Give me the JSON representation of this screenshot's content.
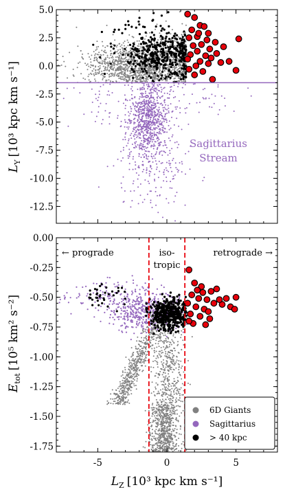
{
  "chart_data": [
    {
      "type": "scatter",
      "panel": "top",
      "xlim": [
        -8,
        8
      ],
      "ylim": [
        -14,
        5
      ],
      "xticks": [
        -5,
        0,
        5
      ],
      "yticks": [
        5.0,
        2.5,
        0.0,
        -2.5,
        -5.0,
        -7.5,
        -10.0,
        -12.5
      ],
      "ytick_labels": [
        "5.0",
        "2.5",
        "0.0",
        "-2.5",
        "-5.0",
        "-7.5",
        "-10.0",
        "-12.5"
      ],
      "ylabel_main": "L",
      "ylabel_sub": "Y",
      "ylabel_units": "[10³ kpc km s⁻¹]",
      "hline_y": -1.5,
      "hline_color": "#9467bd",
      "annotation_line1": "Sagittarius",
      "annotation_line2": "Stream",
      "series": [
        {
          "name": "6D Giants",
          "color": "#808080",
          "clusters": [
            {
              "cx": -2.5,
              "cy": -0.1,
              "sx": 1.6,
              "sy": 0.9,
              "n": 900
            },
            {
              "cx": 0.2,
              "cy": 0.3,
              "sx": 1.5,
              "sy": 1.1,
              "n": 500
            },
            {
              "cx": 0,
              "cy": 0.5,
              "sx": 3.5,
              "sy": 1.3,
              "n": 250
            }
          ]
        },
        {
          "name": "Sagittarius",
          "color": "#9467bd",
          "clusters": [
            {
              "cx": -1.3,
              "cy": -4.8,
              "sx": 0.7,
              "sy": 1.6,
              "n": 750
            },
            {
              "cx": -1.0,
              "cy": -8.5,
              "sx": 1.4,
              "sy": 2.2,
              "n": 220
            },
            {
              "cx": -1.0,
              "cy": -3.0,
              "sx": 3.0,
              "sy": 1.0,
              "n": 150
            }
          ]
        },
        {
          "name": "> 40 kpc",
          "color": "#000000",
          "clusters": [
            {
              "cx": -0.2,
              "cy": 0.8,
              "sx": 1.3,
              "sy": 1.0,
              "n": 380
            },
            {
              "cx": -1.5,
              "cy": 2.2,
              "sx": 1.6,
              "sy": 1.3,
              "n": 80
            }
          ]
        }
      ],
      "red_points": [
        [
          1.5,
          4.6
        ],
        [
          2.0,
          4.3
        ],
        [
          2.4,
          3.6
        ],
        [
          1.8,
          3.2
        ],
        [
          2.7,
          3.5
        ],
        [
          3.0,
          2.9
        ],
        [
          2.2,
          2.6
        ],
        [
          1.6,
          2.5
        ],
        [
          2.9,
          2.3
        ],
        [
          3.5,
          2.1
        ],
        [
          2.5,
          1.9
        ],
        [
          1.9,
          1.8
        ],
        [
          3.1,
          1.5
        ],
        [
          2.2,
          1.3
        ],
        [
          3.6,
          1.1
        ],
        [
          2.8,
          0.9
        ],
        [
          1.7,
          1.0
        ],
        [
          2.4,
          0.4
        ],
        [
          3.0,
          0.2
        ],
        [
          4.5,
          0.4
        ],
        [
          5.2,
          2.4
        ],
        [
          2.1,
          0.0
        ],
        [
          1.6,
          -0.3
        ],
        [
          2.6,
          -0.5
        ],
        [
          3.2,
          0.7
        ],
        [
          5.0,
          -0.4
        ],
        [
          3.9,
          0.3
        ],
        [
          2.0,
          -0.8
        ],
        [
          3.3,
          -1.2
        ],
        [
          4.1,
          1.7
        ],
        [
          1.5,
          0.6
        ],
        [
          2.3,
          2.9
        ]
      ]
    },
    {
      "type": "scatter",
      "panel": "bottom",
      "xlim": [
        -8,
        8
      ],
      "ylim": [
        -1.8,
        0.0
      ],
      "xticks": [
        -5,
        0,
        5
      ],
      "xtick_labels": [
        "-5",
        "0",
        "5"
      ],
      "yticks": [
        0.0,
        -0.25,
        -0.5,
        -0.75,
        -1.0,
        -1.25,
        -1.5,
        -1.75
      ],
      "ytick_labels": [
        "0.00",
        "-0.25",
        "-0.50",
        "-0.75",
        "-1.00",
        "-1.25",
        "-1.50",
        "-1.75"
      ],
      "ylabel_main": "E",
      "ylabel_sub": "tot",
      "ylabel_units": "[10⁵ km² s⁻²]",
      "xlabel_main": "L",
      "xlabel_sub": "Z",
      "xlabel_units": "[10³ kpc km s⁻¹]",
      "vlines_x": [
        -1.3,
        1.3
      ],
      "vline_color": "#e8000b",
      "region_labels": {
        "prograde": "← prograde",
        "iso_line1": "iso-",
        "iso_line2": "tropic",
        "retrograde": "retrograde →"
      },
      "legend": [
        {
          "label": "6D Giants",
          "color": "#808080"
        },
        {
          "label": "Sagittarius",
          "color": "#9467bd"
        },
        {
          "label": "> 40 kpc",
          "color": "#000000"
        }
      ],
      "legend_position": "lower-right",
      "red_points": [
        [
          1.6,
          -0.27
        ],
        [
          2.0,
          -0.38
        ],
        [
          2.5,
          -0.41
        ],
        [
          3.2,
          -0.45
        ],
        [
          3.6,
          -0.43
        ],
        [
          1.8,
          -0.48
        ],
        [
          2.3,
          -0.51
        ],
        [
          2.9,
          -0.52
        ],
        [
          3.4,
          -0.55
        ],
        [
          4.0,
          -0.56
        ],
        [
          4.6,
          -0.58
        ],
        [
          5.0,
          -0.5
        ],
        [
          1.5,
          -0.55
        ],
        [
          2.1,
          -0.58
        ],
        [
          2.7,
          -0.6
        ],
        [
          3.8,
          -0.52
        ],
        [
          1.7,
          -0.64
        ],
        [
          2.4,
          -0.66
        ],
        [
          3.1,
          -0.68
        ],
        [
          1.9,
          -0.72
        ],
        [
          2.6,
          -0.46
        ],
        [
          4.3,
          -0.51
        ],
        [
          3.0,
          -0.62
        ],
        [
          2.2,
          -0.44
        ],
        [
          4.9,
          -0.6
        ],
        [
          1.6,
          -0.7
        ],
        [
          2.8,
          -0.73
        ]
      ]
    }
  ]
}
